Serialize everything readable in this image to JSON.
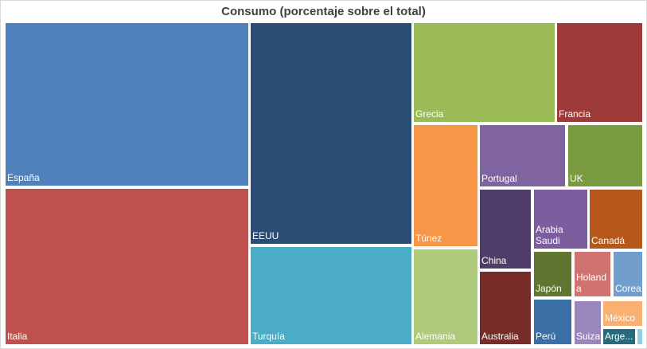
{
  "chart_data": {
    "type": "treemap",
    "title": "Consumo (porcentaje sobre el total)",
    "series": [
      {
        "name": "España",
        "value": 14.1,
        "color": "#4f81bd"
      },
      {
        "name": "Italia",
        "value": 14.0,
        "color": "#c0504d"
      },
      {
        "name": "EEUU",
        "value": 13.2,
        "color": "#2c4d75"
      },
      {
        "name": "Turquía",
        "value": 6.3,
        "color": "#4bacc6"
      },
      {
        "name": "Grecia",
        "value": 5.2,
        "color": "#9bbb59"
      },
      {
        "name": "Francia",
        "value": 3.2,
        "color": "#9e3a38"
      },
      {
        "name": "Túnez",
        "value": 3.8,
        "color": "#f79646"
      },
      {
        "name": "Alemania",
        "value": 2.9,
        "color": "#b0ca7c"
      },
      {
        "name": "Portugal",
        "value": 2.1,
        "color": "#8064a2"
      },
      {
        "name": "UK",
        "value": 1.8,
        "color": "#7a9a3f"
      },
      {
        "name": "China",
        "value": 1.5,
        "color": "#4e3d68"
      },
      {
        "name": "Australia",
        "value": 1.6,
        "color": "#772c2a"
      },
      {
        "name": "Arabia Saudi",
        "value": 1.2,
        "color": "#7e5d9e"
      },
      {
        "name": "Canadá",
        "value": 1.2,
        "color": "#b65819"
      },
      {
        "name": "Japón",
        "value": 0.6,
        "color": "#5f7530"
      },
      {
        "name": "Holanda",
        "value": 0.6,
        "color": "#d07370"
      },
      {
        "name": "Corea",
        "value": 0.5,
        "color": "#729ece"
      },
      {
        "name": "Perú",
        "value": 0.5,
        "color": "#3a6ea5"
      },
      {
        "name": "Suiza",
        "value": 0.35,
        "color": "#9b86bb"
      },
      {
        "name": "México",
        "value": 0.4,
        "color": "#f9b073"
      },
      {
        "name": "Argentina",
        "value": 0.25,
        "color": "#276a7c"
      },
      {
        "name": "",
        "value": 0.05,
        "color": "#8fd0e2"
      }
    ]
  }
}
